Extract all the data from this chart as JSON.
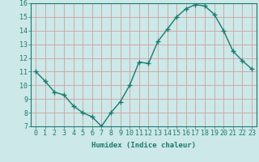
{
  "x": [
    0,
    1,
    2,
    3,
    4,
    5,
    6,
    7,
    8,
    9,
    10,
    11,
    12,
    13,
    14,
    15,
    16,
    17,
    18,
    19,
    20,
    21,
    22,
    23
  ],
  "y": [
    11.0,
    10.3,
    9.5,
    9.3,
    8.5,
    8.0,
    7.7,
    7.0,
    8.0,
    8.8,
    10.0,
    11.7,
    11.6,
    13.2,
    14.1,
    15.0,
    15.6,
    15.9,
    15.8,
    15.2,
    14.0,
    12.5,
    11.8,
    11.2
  ],
  "line_color": "#1a7a6e",
  "marker": "+",
  "marker_size": 4,
  "bg_color": "#cce8e8",
  "grid_color": "#b0d0d0",
  "xlabel": "Humidex (Indice chaleur)",
  "xlim": [
    -0.5,
    23.5
  ],
  "ylim": [
    7,
    16
  ],
  "yticks": [
    7,
    8,
    9,
    10,
    11,
    12,
    13,
    14,
    15,
    16
  ],
  "xticks": [
    0,
    1,
    2,
    3,
    4,
    5,
    6,
    7,
    8,
    9,
    10,
    11,
    12,
    13,
    14,
    15,
    16,
    17,
    18,
    19,
    20,
    21,
    22,
    23
  ],
  "xlabel_fontsize": 6.5,
  "tick_fontsize": 6,
  "line_width": 1.0,
  "marker_edge_width": 1.0
}
